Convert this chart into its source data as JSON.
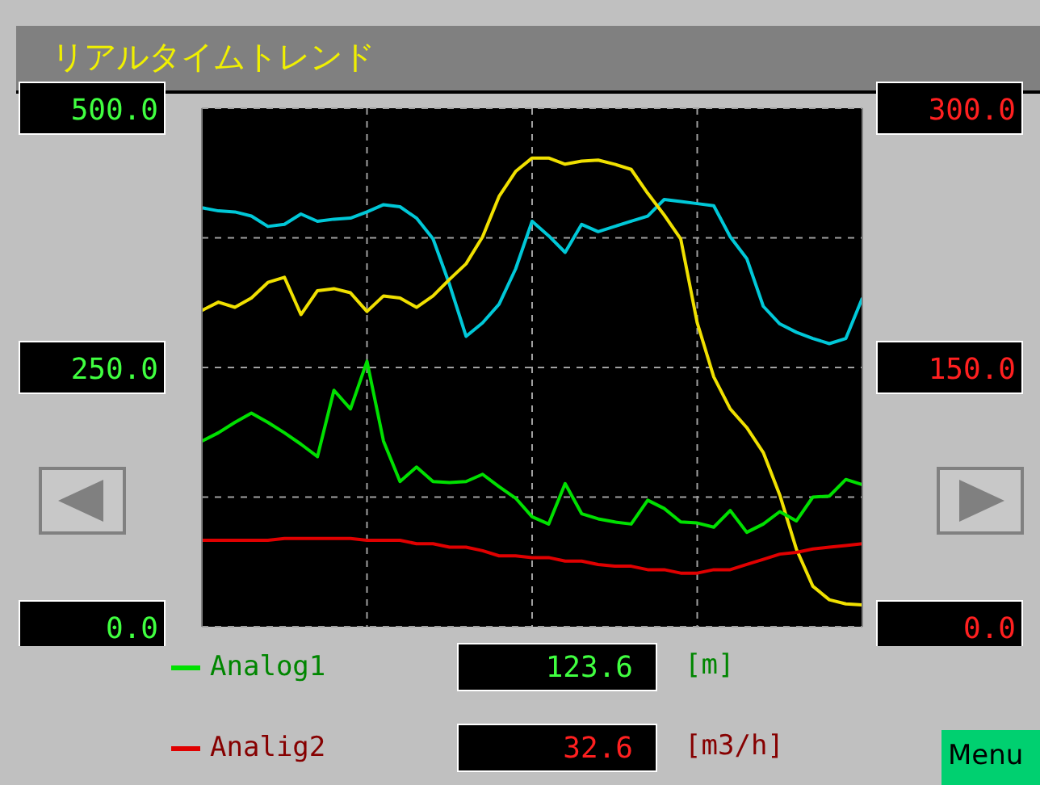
{
  "chart_data": {
    "type": "line",
    "title": "リアルタイムトレンド",
    "categories": [
      null,
      null,
      null,
      null,
      null,
      null,
      null,
      null,
      null,
      null,
      null,
      null,
      null,
      null,
      null,
      null,
      null,
      null,
      null,
      null,
      null,
      null,
      null,
      null,
      null,
      null,
      null,
      null,
      null,
      null,
      null,
      null,
      null,
      null,
      null,
      null,
      null,
      null,
      null,
      null,
      null
    ],
    "series": [
      {
        "color": "#00c8d8",
        "values": [
          404,
          401,
          400,
          396,
          386,
          388,
          398,
          391,
          393,
          394,
          400,
          407,
          405,
          394,
          374,
          330,
          280,
          293,
          311,
          345,
          391,
          377,
          361,
          388,
          381,
          386,
          391,
          396,
          412,
          410,
          408,
          406,
          376,
          355,
          309,
          292,
          284,
          278,
          273,
          278,
          317
        ]
      },
      {
        "color": "#f0e000",
        "values": [
          305,
          313,
          308,
          317,
          332,
          337,
          301,
          324,
          326,
          322,
          304,
          319,
          317,
          308,
          319,
          335,
          350,
          376,
          415,
          439,
          452,
          452,
          446,
          449,
          450,
          446,
          441,
          418,
          397,
          374,
          293,
          241,
          210,
          192,
          168,
          127,
          75,
          39,
          26,
          22,
          21
        ]
      },
      {
        "name": "Analog1",
        "color": "#00e000",
        "values": [
          179,
          187,
          197,
          206,
          197,
          187,
          176,
          164,
          228,
          210,
          256,
          179,
          140,
          154,
          140,
          139,
          140,
          147,
          135,
          124,
          106,
          99,
          138,
          109,
          104,
          101,
          99,
          122,
          114,
          101,
          100,
          96,
          112,
          91,
          99,
          111,
          102,
          125,
          126,
          142,
          137
        ]
      },
      {
        "name": "Analig2",
        "color": "#e00000",
        "axis": "y2",
        "values": [
          50,
          50,
          50,
          50,
          50,
          51,
          51,
          51,
          51,
          51,
          50,
          50,
          50,
          48,
          48,
          46,
          46,
          44,
          41,
          41,
          40,
          40,
          38,
          38,
          36,
          35,
          35,
          33,
          33,
          31,
          31,
          33,
          33,
          36,
          39,
          42,
          43,
          45,
          46,
          47,
          48
        ]
      }
    ],
    "ylim": [
      0,
      500
    ],
    "yticks": [
      {
        "value": 0,
        "label": "0.0"
      },
      {
        "value": 125,
        "label": null
      },
      {
        "value": 250,
        "label": "250.0"
      },
      {
        "value": 375,
        "label": null
      },
      {
        "value": 500,
        "label": "500.0"
      }
    ],
    "y2lim": [
      0,
      300
    ],
    "y2ticks": [
      {
        "value": 0,
        "label": "0.0"
      },
      {
        "value": 75,
        "label": null
      },
      {
        "value": 150,
        "label": "150.0"
      },
      {
        "value": 225,
        "label": null
      },
      {
        "value": 300,
        "label": "300.0"
      }
    ],
    "tick_labels": "y",
    "grid": true,
    "marker": "none",
    "line_style": "solid",
    "legend": "bottom",
    "annotations": [
      "123.6",
      "[m]",
      "32.6",
      "[m3/h]",
      "Menu"
    ]
  }
}
